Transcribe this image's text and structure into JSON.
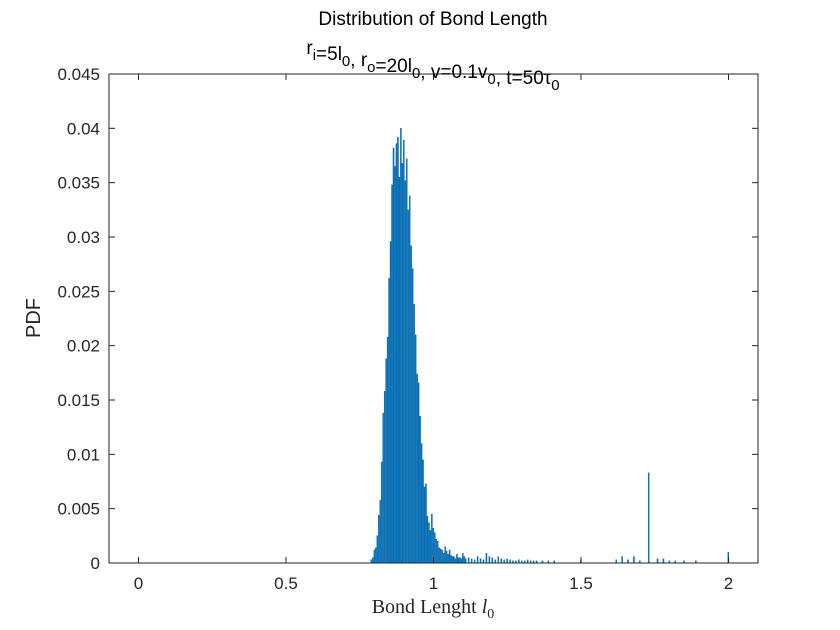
{
  "chart_data": {
    "type": "bar",
    "title": "Distribution of Bond Length",
    "subtitle": {
      "segments": [
        {
          "text": "r",
          "sub": "i"
        },
        {
          "text": "=5l",
          "sub": "0"
        },
        {
          "text": ", r",
          "sub": "o"
        },
        {
          "text": "=20l",
          "sub": "0"
        },
        {
          "text": ", v=0.1v",
          "sub": "0"
        },
        {
          "text": ", t=50τ",
          "sub": "0"
        }
      ]
    },
    "xlabel": {
      "text": "Bond Lenght ",
      "math": "l",
      "sub": "0"
    },
    "ylabel": "PDF",
    "xlim": [
      -0.1,
      2.1
    ],
    "ylim": [
      0,
      0.045
    ],
    "xticks": [
      0,
      0.5,
      1,
      1.5,
      2
    ],
    "xtick_labels": [
      "0",
      "0.5",
      "1",
      "1.5",
      "2"
    ],
    "yticks": [
      0,
      0.005,
      0.01,
      0.015,
      0.02,
      0.025,
      0.03,
      0.035,
      0.04,
      0.045
    ],
    "ytick_labels": [
      "0",
      "0.005",
      "0.01",
      "0.015",
      "0.02",
      "0.025",
      "0.03",
      "0.035",
      "0.04",
      "0.045"
    ],
    "bar_color": "#0072BD",
    "bin_width": 0.005,
    "x": [
      0.79,
      0.795,
      0.8,
      0.805,
      0.81,
      0.815,
      0.82,
      0.825,
      0.83,
      0.835,
      0.84,
      0.845,
      0.85,
      0.855,
      0.86,
      0.865,
      0.87,
      0.875,
      0.88,
      0.885,
      0.89,
      0.895,
      0.9,
      0.905,
      0.91,
      0.915,
      0.92,
      0.925,
      0.93,
      0.935,
      0.94,
      0.945,
      0.95,
      0.955,
      0.96,
      0.965,
      0.97,
      0.975,
      0.98,
      0.985,
      0.99,
      0.995,
      1.0,
      1.005,
      1.01,
      1.015,
      1.02,
      1.025,
      1.03,
      1.035,
      1.04,
      1.045,
      1.05,
      1.055,
      1.06,
      1.065,
      1.07,
      1.075,
      1.08,
      1.085,
      1.09,
      1.095,
      1.1,
      1.105,
      1.11,
      1.12,
      1.13,
      1.14,
      1.15,
      1.16,
      1.17,
      1.18,
      1.19,
      1.2,
      1.21,
      1.22,
      1.23,
      1.24,
      1.25,
      1.26,
      1.27,
      1.28,
      1.29,
      1.3,
      1.31,
      1.32,
      1.33,
      1.34,
      1.35,
      1.37,
      1.39,
      1.41,
      1.5,
      1.62,
      1.64,
      1.66,
      1.68,
      1.7,
      1.73,
      1.76,
      1.78,
      1.8,
      1.82,
      1.85,
      1.89,
      2.0
    ],
    "values": [
      0.0003,
      0.0005,
      0.0012,
      0.0014,
      0.0025,
      0.0044,
      0.0058,
      0.0093,
      0.0138,
      0.0158,
      0.0188,
      0.0208,
      0.0262,
      0.0296,
      0.0348,
      0.0382,
      0.0365,
      0.0386,
      0.0392,
      0.0355,
      0.04,
      0.0368,
      0.0389,
      0.0352,
      0.0372,
      0.0325,
      0.0338,
      0.0292,
      0.0271,
      0.0238,
      0.021,
      0.0174,
      0.0166,
      0.0135,
      0.011,
      0.0095,
      0.007,
      0.0073,
      0.0043,
      0.0037,
      0.003,
      0.0045,
      0.0032,
      0.0028,
      0.0022,
      0.002,
      0.0014,
      0.0013,
      0.0012,
      0.0009,
      0.0015,
      0.0011,
      0.0008,
      0.0012,
      0.0007,
      0.0006,
      0.0006,
      0.0004,
      0.0008,
      0.0005,
      0.0005,
      0.0004,
      0.0009,
      0.0006,
      0.0004,
      0.0005,
      0.0004,
      0.0003,
      0.0006,
      0.0004,
      0.0003,
      0.0009,
      0.0006,
      0.0005,
      0.0003,
      0.0006,
      0.0004,
      0.0003,
      0.0004,
      0.0003,
      0.0002,
      0.0002,
      0.0003,
      0.0002,
      0.0002,
      0.0003,
      0.0002,
      0.0002,
      0.0002,
      0.0002,
      0.0002,
      0.0002,
      0.0002,
      0.0003,
      0.0006,
      0.0003,
      0.0006,
      0.0002,
      0.0083,
      0.0004,
      0.0004,
      0.0002,
      0.0002,
      0.0002,
      0.0002,
      0.001
    ],
    "grid": false,
    "box": true
  }
}
